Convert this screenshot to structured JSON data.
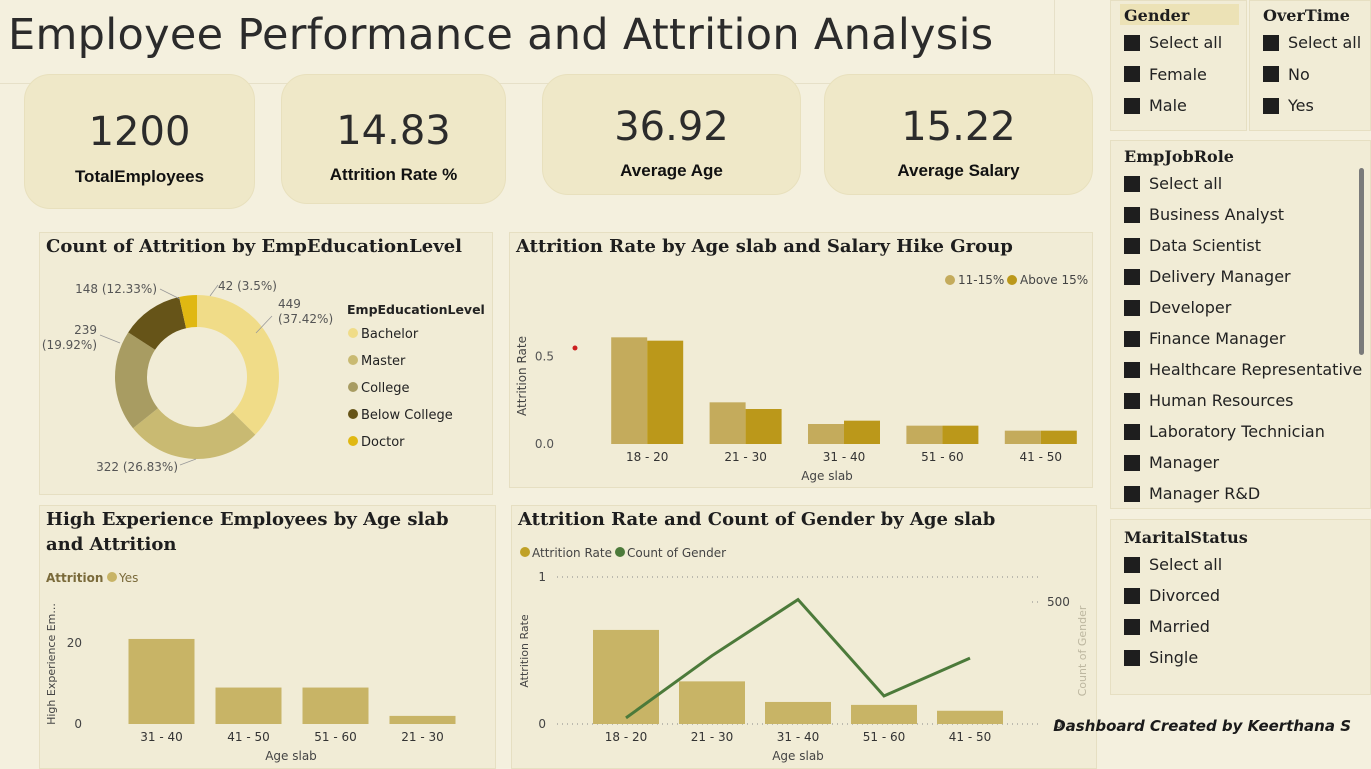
{
  "title": "Employee Performance and Attrition Analysis",
  "kpis": [
    {
      "value": "1200",
      "label": "TotalEmployees"
    },
    {
      "value": "14.83",
      "label": "Attrition Rate %"
    },
    {
      "value": "36.92",
      "label": "Average Age"
    },
    {
      "value": "15.22",
      "label": "Average Salary"
    }
  ],
  "slicers": {
    "gender": {
      "title": "Gender",
      "options": [
        "Select all",
        "Female",
        "Male"
      ]
    },
    "overtime": {
      "title": "OverTime",
      "options": [
        "Select all",
        "No",
        "Yes"
      ]
    },
    "jobrole": {
      "title": "EmpJobRole",
      "options": [
        "Select all",
        "Business Analyst",
        "Data Scientist",
        "Delivery Manager",
        "Developer",
        "Finance Manager",
        "Healthcare Representative",
        "Human Resources",
        "Laboratory Technician",
        "Manager",
        "Manager R&D"
      ]
    },
    "marital": {
      "title": "MaritalStatus",
      "options": [
        "Select all",
        "Divorced",
        "Married",
        "Single"
      ]
    }
  },
  "footer": "Dashboard Created by Keerthana S",
  "colors": {
    "bachelor": "#f0dc88",
    "master": "#c9ba72",
    "college": "#a89c62",
    "below_college": "#665418",
    "doctor": "#e0b812",
    "hike_11_15": "#c4ab5c",
    "hike_above_15": "#bb981a",
    "bar": "#c8b466",
    "line": "#4c7a3a"
  },
  "chart_data": [
    {
      "type": "pie",
      "title": "Count of Attrition by EmpEducationLevel",
      "legend_title": "EmpEducationLevel",
      "legend_position": "right",
      "slices": [
        {
          "name": "Bachelor",
          "value": 449,
          "label": "449 (37.42%)"
        },
        {
          "name": "Master",
          "value": 322,
          "label": "322 (26.83%)"
        },
        {
          "name": "College",
          "value": 239,
          "label": "239 (19.92%)"
        },
        {
          "name": "Below College",
          "value": 148,
          "label": "148 (12.33%)"
        },
        {
          "name": "Doctor",
          "value": 42,
          "label": "42 (3.5%)"
        }
      ]
    },
    {
      "type": "bar",
      "title": "Attrition Rate by Age slab and Salary Hike Group",
      "categories": [
        "18 - 20",
        "21 - 30",
        "31 - 40",
        "51 - 60",
        "41 - 50"
      ],
      "series": [
        {
          "name": "11-15%",
          "values": [
            0.64,
            0.25,
            0.12,
            0.11,
            0.08
          ]
        },
        {
          "name": "Above 15%",
          "values": [
            0.62,
            0.21,
            0.14,
            0.11,
            0.08
          ]
        }
      ],
      "xlabel": "Age slab",
      "ylabel": "Attrition Rate",
      "yticks": [
        "0.0",
        "0.5"
      ],
      "ylim": [
        0,
        0.7
      ],
      "legend_position": "top-right"
    },
    {
      "type": "bar",
      "title": "High Experience Employees by Age slab and Attrition",
      "legend_title": "Attrition",
      "categories": [
        "31 - 40",
        "41 - 50",
        "51 - 60",
        "21 - 30"
      ],
      "series": [
        {
          "name": "Yes",
          "values": [
            21,
            9,
            9,
            2
          ]
        }
      ],
      "xlabel": "Age slab",
      "ylabel": "High Experience Em...",
      "yticks": [
        "0",
        "20"
      ],
      "ylim": [
        0,
        24
      ]
    },
    {
      "type": "bar",
      "title": "Attrition Rate and Count of Gender by Age slab",
      "categories": [
        "18 - 20",
        "21 - 30",
        "31 - 40",
        "51 - 60",
        "41 - 50"
      ],
      "series": [
        {
          "name": "Attrition Rate",
          "kind": "bar",
          "values": [
            0.64,
            0.29,
            0.15,
            0.13,
            0.09
          ]
        },
        {
          "name": "Count of Gender",
          "kind": "line",
          "values": [
            25,
            280,
            510,
            115,
            270
          ]
        }
      ],
      "xlabel": "Age slab",
      "ylabel": "Attrition Rate",
      "y2label": "Count of Gender",
      "yticks": [
        "0",
        "1"
      ],
      "y2ticks": [
        "0",
        "500"
      ],
      "ylim": [
        0,
        1
      ],
      "y2lim": [
        0,
        520
      ]
    }
  ]
}
